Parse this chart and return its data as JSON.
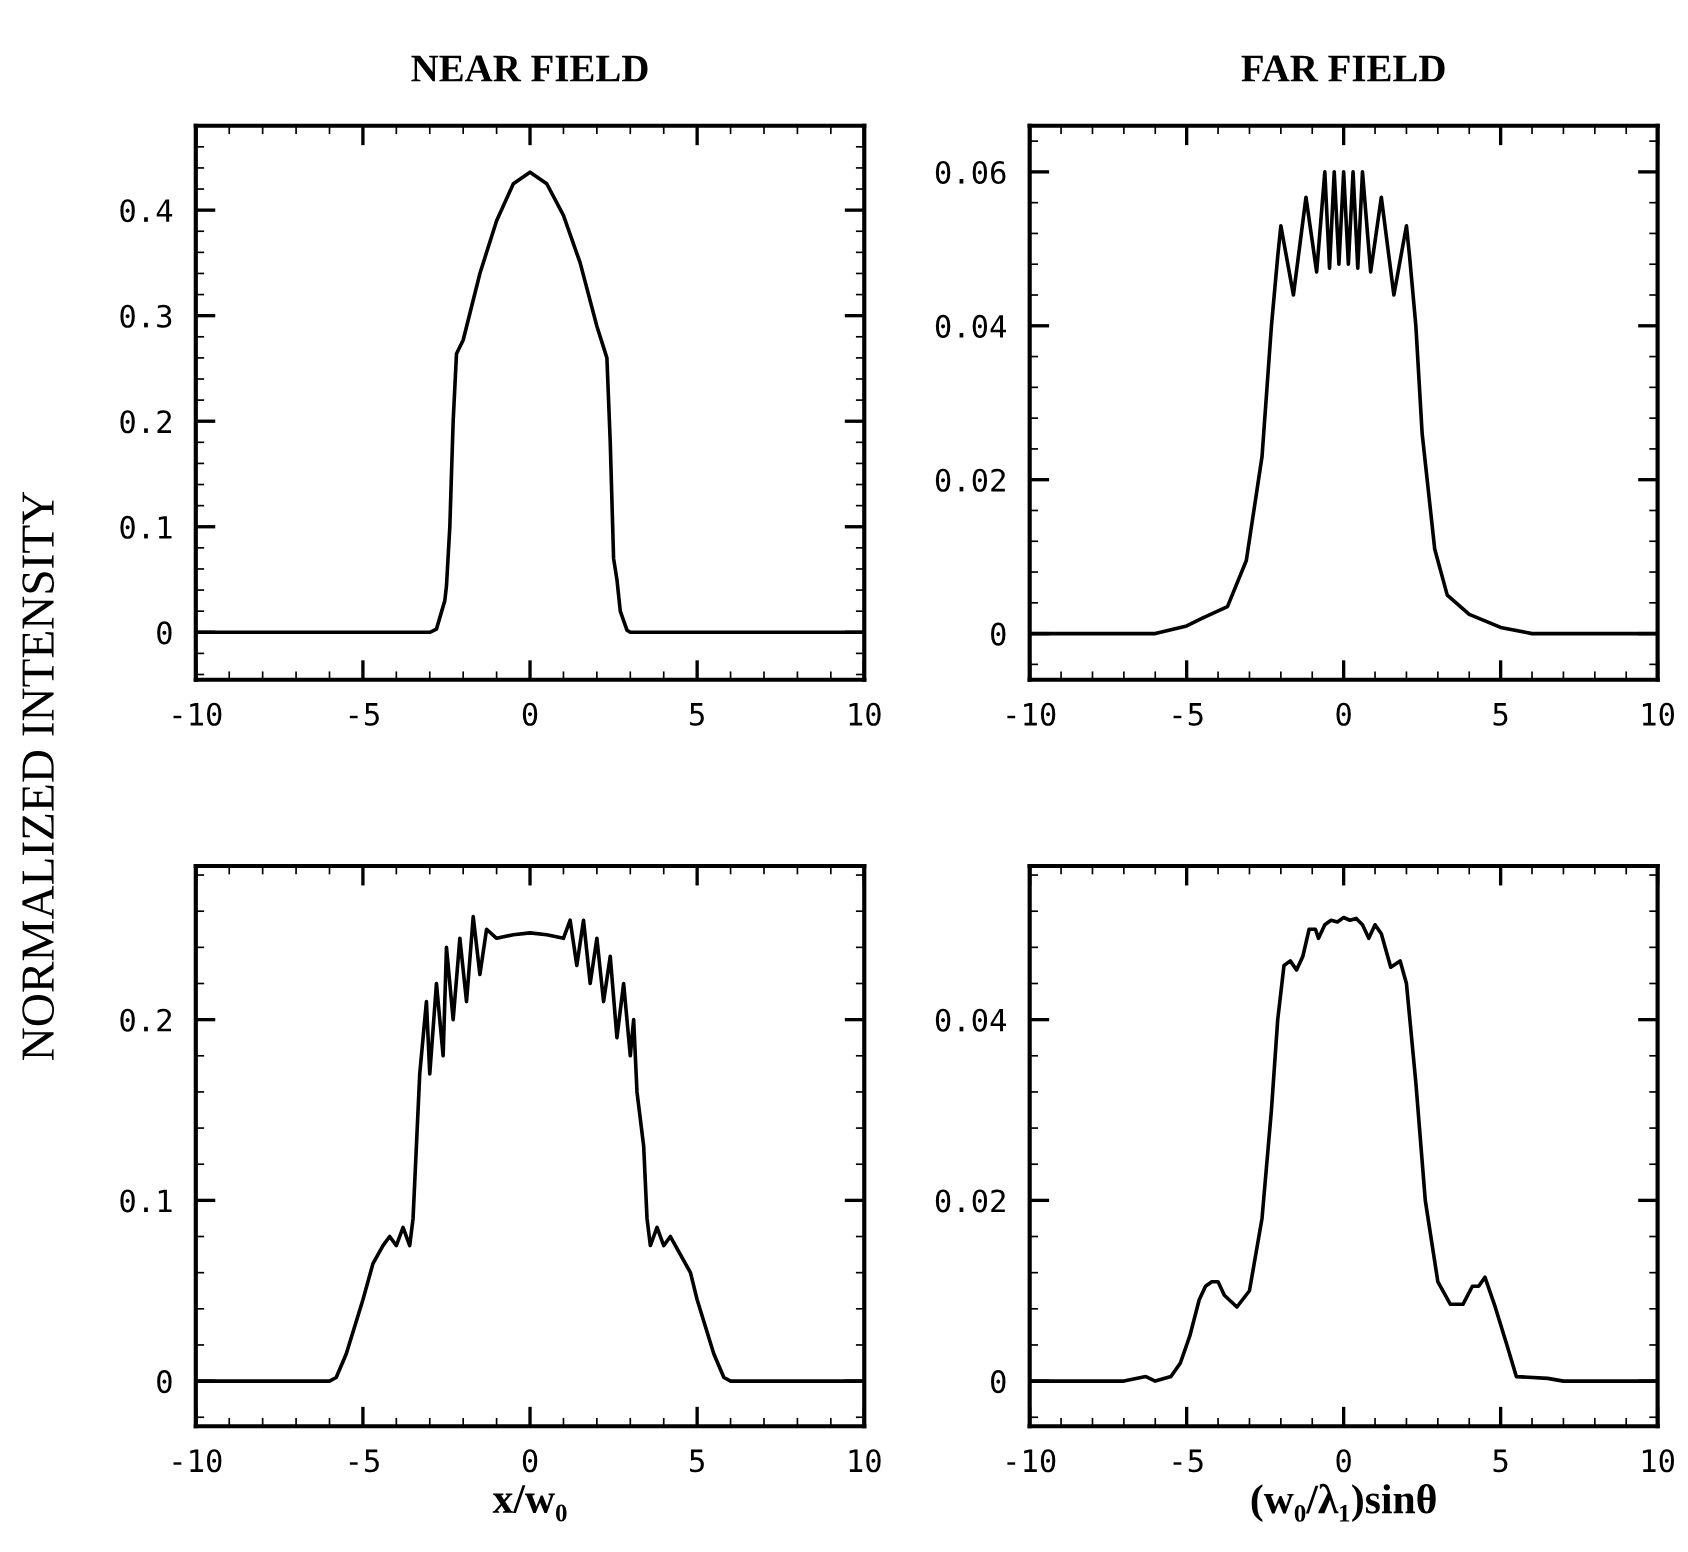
{
  "chart_data": [
    {
      "type": "line",
      "title": "NEAR FIELD",
      "ylabel": "NORMALIZED INTENSITY",
      "xlim": [
        -10,
        10
      ],
      "xticks": [
        -10,
        -5,
        0,
        5,
        10
      ],
      "ylim": [
        -0.045,
        0.48
      ],
      "yticks": [
        0,
        0.1,
        0.2,
        0.3,
        0.4
      ],
      "grid": false,
      "marker": "none",
      "line_style": "solid",
      "series": [
        {
          "color": "#000000",
          "x": [
            -10,
            -3,
            -2.8,
            -2.55,
            -2.5,
            -2.4,
            -2.3,
            -2.2,
            -2.0,
            -1.5,
            -1.0,
            -0.5,
            0,
            0.5,
            1.0,
            1.5,
            2.0,
            2.3,
            2.4,
            2.5,
            2.6,
            2.7,
            2.9,
            3.0,
            10
          ],
          "values": [
            0,
            0,
            0.003,
            0.03,
            0.044,
            0.1,
            0.2,
            0.264,
            0.277,
            0.34,
            0.39,
            0.425,
            0.436,
            0.425,
            0.395,
            0.35,
            0.29,
            0.26,
            0.18,
            0.07,
            0.05,
            0.02,
            0.002,
            0,
            0
          ]
        }
      ]
    },
    {
      "type": "line",
      "title": "FAR FIELD",
      "xlim": [
        -10,
        10
      ],
      "xticks": [
        -10,
        -5,
        0,
        5,
        10
      ],
      "ylim": [
        -0.006,
        0.066
      ],
      "yticks": [
        0,
        0.02,
        0.04,
        0.06
      ],
      "grid": false,
      "marker": "none",
      "line_style": "solid",
      "series": [
        {
          "color": "#000000",
          "x": [
            -10,
            -6,
            -5,
            -4.5,
            -3.7,
            -3.1,
            -2.6,
            -2.3,
            -2.1,
            -2.0,
            -1.6,
            -1.2,
            -0.86,
            -0.6,
            -0.45,
            -0.3,
            -0.15,
            0,
            0.15,
            0.3,
            0.45,
            0.6,
            0.86,
            1.2,
            1.6,
            2.0,
            2.1,
            2.3,
            2.5,
            2.9,
            3.3,
            4,
            5,
            6,
            10
          ],
          "values": [
            0,
            0,
            0.001,
            0.002,
            0.0035,
            0.0095,
            0.023,
            0.04,
            0.049,
            0.053,
            0.044,
            0.0567,
            0.047,
            0.06,
            0.0475,
            0.06,
            0.048,
            0.06,
            0.048,
            0.06,
            0.0475,
            0.06,
            0.047,
            0.0567,
            0.044,
            0.053,
            0.049,
            0.04,
            0.026,
            0.011,
            0.005,
            0.0025,
            0.0008,
            0,
            0
          ]
        }
      ]
    },
    {
      "type": "line",
      "xlabel": "x/w₀",
      "xlim": [
        -10,
        10
      ],
      "xticks": [
        -10,
        -5,
        0,
        5,
        10
      ],
      "ylim": [
        -0.025,
        0.285
      ],
      "yticks": [
        0,
        0.1,
        0.2
      ],
      "grid": false,
      "marker": "none",
      "line_style": "solid",
      "series": [
        {
          "color": "#000000",
          "x": [
            -10,
            -6,
            -5.8,
            -5.5,
            -5.0,
            -4.7,
            -4.4,
            -4.2,
            -4.0,
            -3.8,
            -3.6,
            -3.5,
            -3.4,
            -3.3,
            -3.1,
            -3.0,
            -2.8,
            -2.6,
            -2.5,
            -2.3,
            -2.1,
            -1.9,
            -1.7,
            -1.5,
            -1.3,
            -1.0,
            -0.5,
            0,
            0.5,
            1.0,
            1.2,
            1.4,
            1.6,
            1.8,
            2.0,
            2.2,
            2.4,
            2.6,
            2.8,
            3.0,
            3.1,
            3.2,
            3.4,
            3.5,
            3.6,
            3.8,
            4.0,
            4.2,
            4.5,
            4.8,
            5.0,
            5.5,
            5.8,
            6,
            10
          ],
          "values": [
            0,
            0,
            0.002,
            0.015,
            0.045,
            0.065,
            0.075,
            0.08,
            0.075,
            0.085,
            0.075,
            0.09,
            0.13,
            0.17,
            0.21,
            0.17,
            0.22,
            0.18,
            0.24,
            0.2,
            0.245,
            0.21,
            0.257,
            0.225,
            0.25,
            0.245,
            0.247,
            0.248,
            0.247,
            0.245,
            0.255,
            0.23,
            0.255,
            0.22,
            0.245,
            0.21,
            0.235,
            0.19,
            0.22,
            0.18,
            0.2,
            0.16,
            0.13,
            0.09,
            0.075,
            0.085,
            0.075,
            0.08,
            0.07,
            0.06,
            0.045,
            0.015,
            0.002,
            0,
            0
          ]
        }
      ]
    },
    {
      "type": "line",
      "xlabel": "(w₀/λ₁)sinθ",
      "xlim": [
        -10,
        10
      ],
      "xticks": [
        -10,
        -5,
        0,
        5,
        10
      ],
      "ylim": [
        -0.005,
        0.057
      ],
      "yticks": [
        0,
        0.02,
        0.04
      ],
      "grid": false,
      "marker": "none",
      "line_style": "solid",
      "series": [
        {
          "color": "#000000",
          "x": [
            -10,
            -7,
            -6.3,
            -6,
            -5.5,
            -5.2,
            -4.9,
            -4.6,
            -4.4,
            -4.2,
            -4.0,
            -3.8,
            -3.4,
            -3.0,
            -2.6,
            -2.3,
            -2.1,
            -1.9,
            -1.7,
            -1.5,
            -1.3,
            -1.1,
            -0.9,
            -0.8,
            -0.6,
            -0.4,
            -0.2,
            0,
            0.2,
            0.4,
            0.6,
            0.8,
            1.0,
            1.2,
            1.5,
            1.8,
            2.0,
            2.3,
            2.6,
            3.0,
            3.4,
            3.8,
            4.1,
            4.3,
            4.5,
            4.8,
            5.2,
            5.5,
            6.5,
            7,
            10
          ],
          "values": [
            0,
            0,
            0.0005,
            0,
            0.0005,
            0.002,
            0.005,
            0.009,
            0.0105,
            0.011,
            0.011,
            0.0095,
            0.0082,
            0.01,
            0.018,
            0.03,
            0.04,
            0.046,
            0.0465,
            0.0455,
            0.047,
            0.05,
            0.05,
            0.049,
            0.0505,
            0.051,
            0.0508,
            0.0513,
            0.051,
            0.0512,
            0.0505,
            0.049,
            0.0505,
            0.0495,
            0.0458,
            0.0465,
            0.044,
            0.033,
            0.02,
            0.011,
            0.0085,
            0.0085,
            0.0105,
            0.0105,
            0.0115,
            0.0085,
            0.004,
            0.0005,
            0.0003,
            0,
            0
          ]
        }
      ]
    }
  ]
}
